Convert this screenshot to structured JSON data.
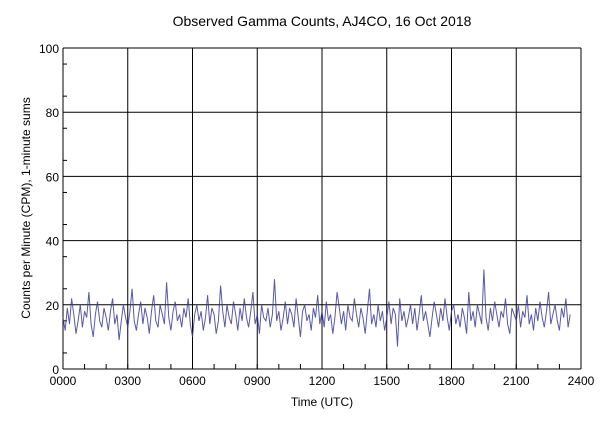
{
  "chart_data": {
    "type": "line",
    "title": "Observed Gamma Counts, AJ4CO, 16 Oct 2018",
    "xlabel": "Time (UTC)",
    "ylabel": "Counts per Minute (CPM), 1-minute sums",
    "xlim": [
      0,
      24
    ],
    "ylim": [
      0,
      100
    ],
    "x_ticks": [
      "0000",
      "0300",
      "0600",
      "0900",
      "1200",
      "1500",
      "1800",
      "2100",
      "2400"
    ],
    "y_ticks": [
      "0",
      "20",
      "40",
      "60",
      "80",
      "100"
    ],
    "grid": true,
    "line_color": "#3c3c96",
    "series": [
      {
        "name": "CPM",
        "x_step_hours": 0.1,
        "values": [
          16,
          12,
          19,
          14,
          22,
          17,
          11,
          15,
          20,
          13,
          18,
          16,
          24,
          14,
          10,
          17,
          21,
          15,
          13,
          19,
          16,
          12,
          18,
          22,
          14,
          17,
          9,
          15,
          20,
          16,
          13,
          18,
          25,
          15,
          12,
          17,
          21,
          14,
          19,
          16,
          11,
          18,
          23,
          15,
          13,
          20,
          17,
          14,
          27,
          16,
          12,
          18,
          21,
          15,
          17,
          13,
          19,
          16,
          22,
          14,
          10,
          17,
          20,
          15,
          18,
          12,
          16,
          23,
          14,
          19,
          17,
          11,
          15,
          26,
          18,
          13,
          20,
          16,
          14,
          21,
          17,
          12,
          19,
          15,
          22,
          16,
          13,
          18,
          24,
          14,
          17,
          11,
          20,
          16,
          15,
          19,
          13,
          17,
          28,
          15,
          18,
          12,
          16,
          21,
          14,
          19,
          17,
          13,
          22,
          16,
          10,
          18,
          20,
          15,
          17,
          12,
          19,
          16,
          23,
          14,
          18,
          13,
          21,
          15,
          17,
          11,
          16,
          24,
          19,
          14,
          18,
          12,
          20,
          16,
          15,
          22,
          17,
          13,
          19,
          16,
          11,
          18,
          25,
          14,
          17,
          13,
          20,
          15,
          18,
          12,
          16,
          21,
          14,
          19,
          17,
          7,
          22,
          15,
          18,
          13,
          16,
          20,
          14,
          19,
          12,
          17,
          23,
          15,
          18,
          14,
          10,
          16,
          21,
          17,
          13,
          19,
          15,
          22,
          16,
          12,
          18,
          20,
          14,
          17,
          13,
          19,
          16,
          11,
          24,
          15,
          18,
          13,
          20,
          17,
          14,
          31,
          16,
          12,
          19,
          15,
          21,
          17,
          13,
          18,
          16,
          22,
          14,
          11,
          19,
          17,
          15,
          20,
          13,
          18,
          16,
          23,
          14,
          17,
          12,
          19,
          15,
          21,
          16,
          13,
          18,
          24,
          14,
          17,
          20,
          15,
          12,
          19,
          16,
          22,
          13,
          17
        ]
      }
    ]
  }
}
